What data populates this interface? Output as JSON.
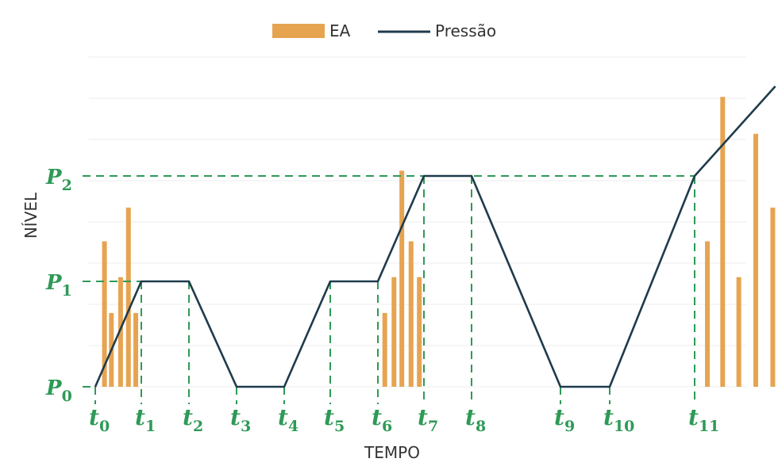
{
  "chart_data": {
    "type": "bar",
    "legend": {
      "position": "top-center",
      "entries": [
        {
          "label": "EA",
          "kind": "bar"
        },
        {
          "label": "Pressão",
          "kind": "line"
        }
      ]
    },
    "xlabel": "TEMPO",
    "ylabel": "NÍVEL",
    "grid": true,
    "colors": {
      "ea": "#e6a451",
      "pressure": "#1f3b4d",
      "guides": "#2e9a57",
      "grid": "#ececec"
    },
    "y_levels": [
      {
        "label": "P",
        "sub": "0",
        "value": 0
      },
      {
        "label": "P",
        "sub": "1",
        "value": 1
      },
      {
        "label": "P",
        "sub": "2",
        "value": 2
      }
    ],
    "time_marks": [
      {
        "label": "t",
        "sub": "0",
        "t": 0
      },
      {
        "label": "t",
        "sub": "1",
        "t": 1
      },
      {
        "label": "t",
        "sub": "2",
        "t": 2
      },
      {
        "label": "t",
        "sub": "3",
        "t": 3
      },
      {
        "label": "t",
        "sub": "4",
        "t": 4
      },
      {
        "label": "t",
        "sub": "5",
        "t": 5
      },
      {
        "label": "t",
        "sub": "6",
        "t": 6
      },
      {
        "label": "t",
        "sub": "7",
        "t": 7
      },
      {
        "label": "t",
        "sub": "8",
        "t": 8
      },
      {
        "label": "t",
        "sub": "9",
        "t": 9
      },
      {
        "label": "t",
        "sub": "10",
        "t": 10
      },
      {
        "label": "t",
        "sub": "11",
        "t": 11
      }
    ],
    "pressure_series": [
      {
        "t": 0,
        "p": 0
      },
      {
        "t": 1,
        "p": 1
      },
      {
        "t": 2,
        "p": 1
      },
      {
        "t": 3,
        "p": 0
      },
      {
        "t": 4,
        "p": 0
      },
      {
        "t": 5,
        "p": 1
      },
      {
        "t": 6,
        "p": 1
      },
      {
        "t": 7,
        "p": 2
      },
      {
        "t": 8,
        "p": 2
      },
      {
        "t": 9,
        "p": 0
      },
      {
        "t": 10,
        "p": 0
      },
      {
        "t": 11,
        "p": 2
      },
      {
        "t": 11.95,
        "p": 2.85
      }
    ],
    "ea_series": [
      {
        "t": 0.2,
        "v": 1.38
      },
      {
        "t": 0.35,
        "v": 0.7
      },
      {
        "t": 0.55,
        "v": 1.04
      },
      {
        "t": 0.72,
        "v": 1.7
      },
      {
        "t": 0.88,
        "v": 0.7
      },
      {
        "t": 6.15,
        "v": 0.7
      },
      {
        "t": 6.35,
        "v": 1.04
      },
      {
        "t": 6.52,
        "v": 2.05
      },
      {
        "t": 6.72,
        "v": 1.38
      },
      {
        "t": 6.9,
        "v": 1.04
      },
      {
        "t": 11.15,
        "v": 1.38
      },
      {
        "t": 11.33,
        "v": 2.75
      },
      {
        "t": 11.52,
        "v": 1.04
      },
      {
        "t": 11.72,
        "v": 2.4
      },
      {
        "t": 11.92,
        "v": 1.7
      }
    ]
  }
}
